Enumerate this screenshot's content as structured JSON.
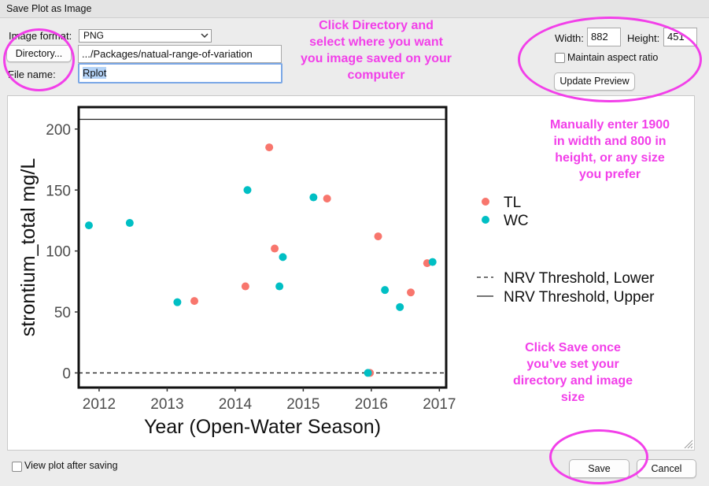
{
  "window": {
    "title": "Save Plot as Image"
  },
  "form": {
    "image_format_label": "Image format:",
    "image_format_value": "PNG",
    "directory_button": "Directory...",
    "directory_path": ".../Packages/natual-range-of-variation",
    "file_name_label": "File name:",
    "file_name_value": "Rplot"
  },
  "size": {
    "width_label": "Width:",
    "width_value": "882",
    "height_label": "Height:",
    "height_value": "451",
    "maintain_aspect_label": "Maintain aspect ratio",
    "maintain_aspect_checked": false,
    "update_preview_button": "Update Preview"
  },
  "footer": {
    "view_after_label": "View plot after saving",
    "view_after_checked": false,
    "save_button": "Save",
    "cancel_button": "Cancel"
  },
  "annotations": {
    "directory_note": [
      "Click Directory and",
      "select where you want",
      "you image saved on your",
      "computer"
    ],
    "size_note": [
      "Manually enter 1900",
      "in width and 800 in",
      "height, or any size",
      "you prefer"
    ],
    "save_note": [
      "Click Save once",
      "you’ve set your",
      "directory and image",
      "size"
    ],
    "color": "#f23fe9"
  },
  "chart_data": {
    "type": "scatter",
    "xlabel": "Year (Open-Water Season)",
    "ylabel": "strontium_total mg/L",
    "xlim": [
      2011.7,
      2017.1
    ],
    "ylim": [
      -12,
      218
    ],
    "x_ticks": [
      2012,
      2013,
      2014,
      2015,
      2016,
      2017
    ],
    "y_ticks": [
      0,
      50,
      100,
      150,
      200
    ],
    "series": [
      {
        "name": "TL",
        "color": "#f8766d",
        "x": [
          2013.4,
          2014.15,
          2014.5,
          2014.58,
          2015.35,
          2015.98,
          2016.1,
          2016.58,
          2016.82
        ],
        "y": [
          59,
          71,
          185,
          102,
          143,
          0,
          112,
          66,
          90
        ]
      },
      {
        "name": "WC",
        "color": "#00bfc4",
        "x": [
          2011.85,
          2012.45,
          2013.15,
          2014.18,
          2014.65,
          2014.7,
          2015.15,
          2015.95,
          2016.2,
          2016.42,
          2016.9
        ],
        "y": [
          121,
          123,
          58,
          150,
          71,
          95,
          144,
          0,
          68,
          54,
          91
        ]
      }
    ],
    "thresholds": [
      {
        "name": "NRV Threshold, Lower",
        "value": 0,
        "style": "dashed"
      },
      {
        "name": "NRV Threshold, Upper",
        "value": 208,
        "style": "solid"
      }
    ],
    "legend_position": "right",
    "grid": false
  }
}
